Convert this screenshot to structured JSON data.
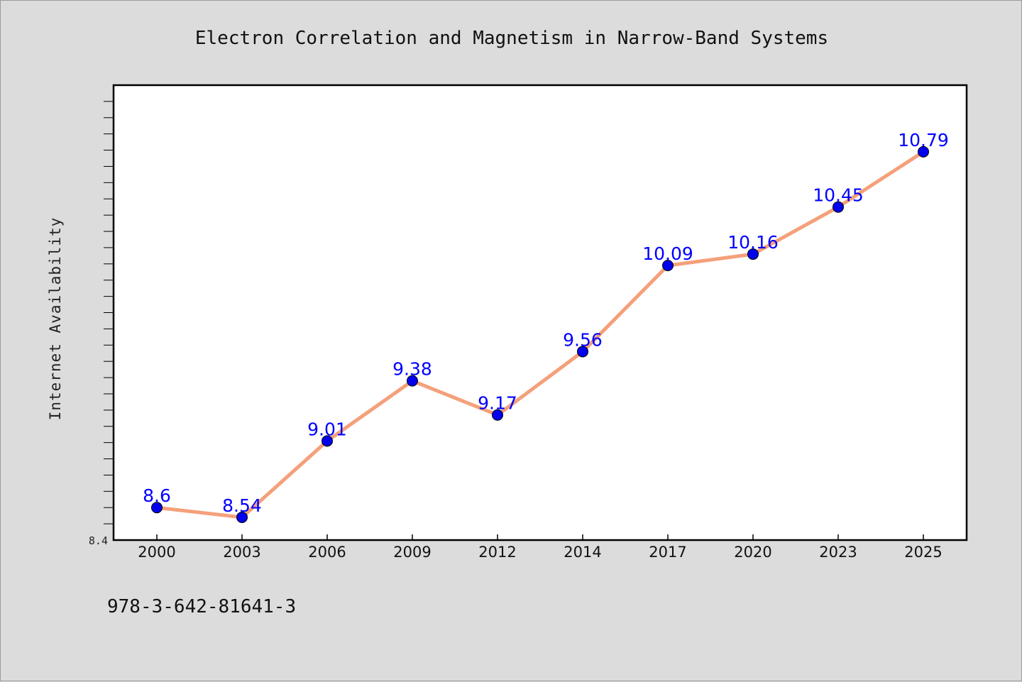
{
  "chart_data": {
    "type": "line",
    "title": "Electron Correlation and Magnetism in Narrow-Band Systems",
    "ylabel": "Internet Availability",
    "xlabel": "",
    "categories": [
      "2000",
      "2003",
      "2006",
      "2009",
      "2012",
      "2014",
      "2017",
      "2020",
      "2023",
      "2025"
    ],
    "series": [
      {
        "values": [
          8.6,
          8.54,
          9.01,
          9.38,
          9.17,
          9.56,
          10.09,
          10.16,
          10.45,
          10.79
        ],
        "labels": [
          "8.6",
          "8.54",
          "9.01",
          "9.38",
          "9.17",
          "9.56",
          "10.09",
          "10.16",
          "10.45",
          "10.79"
        ],
        "line_color": "#f4a07a",
        "marker_color": "#0000ee",
        "label_color": "#0000ff"
      }
    ],
    "ylim": [
      8.4,
      11.2
    ],
    "yticks_labeled": [
      "8.4"
    ],
    "grid": false,
    "legend": "none"
  },
  "footer": {
    "isbn": "978-3-642-81641-3"
  }
}
